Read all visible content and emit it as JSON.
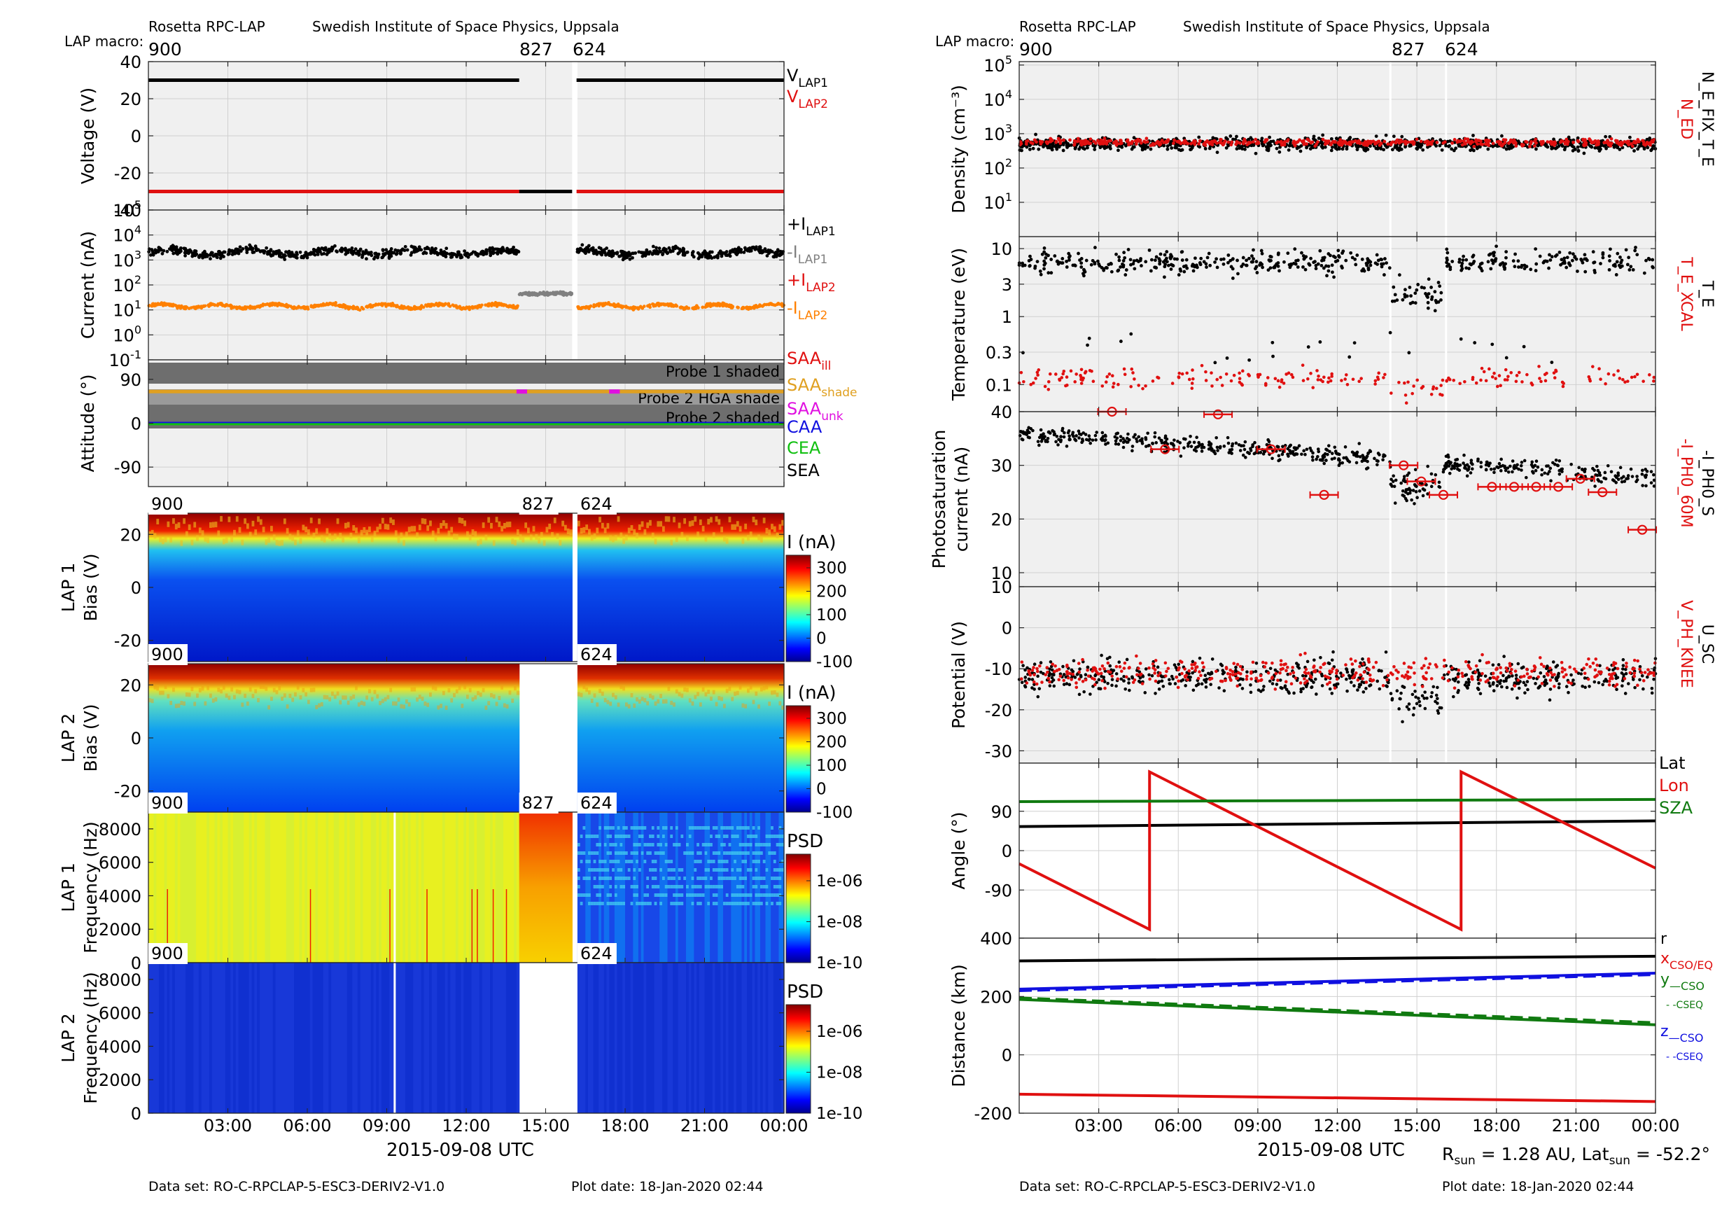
{
  "header": {
    "mission": "Rosetta RPC-LAP",
    "institute": "Swedish Institute of Space Physics, Uppsala",
    "macro_label": "LAP macro:",
    "macros": [
      "900",
      "827",
      "624"
    ]
  },
  "footer": {
    "dataset": "Data set: RO-C-RPCLAP-5-ESC3-DERIV2-V1.0",
    "plot_date": "Plot date: 18-Jan-2020 02:44",
    "xlabel": "2015-09-08 UTC",
    "rsun": "R",
    "rsun_sub": "sun",
    "rsun_val": " = 1.28 AU, Lat",
    "lat_sub": "sun",
    "lat_val": " = -52.2°"
  },
  "time_ticks": [
    "03:00",
    "06:00",
    "09:00",
    "12:00",
    "15:00",
    "18:00",
    "21:00",
    "00:00"
  ],
  "colors": {
    "panel_bg": "#f0f0f0",
    "black": "#000000",
    "red": "#e01010",
    "orange": "#ff8000",
    "grey": "#808080",
    "green": "#10c010",
    "dark_green": "#107a10",
    "blue": "#1010e0",
    "magenta": "#e010e0",
    "saa_shade": "#e0a020",
    "shade_dark": "#6e6e6e"
  },
  "chart_data": [
    {
      "type": "line",
      "name": "voltage",
      "ylabel": "Voltage (V)",
      "ylim": [
        -40,
        40
      ],
      "yticks": [
        "40",
        "20",
        "0",
        "-20",
        "-40"
      ],
      "series": [
        {
          "name": "V_LAP1",
          "segments": [
            {
              "x": [
                "00:00",
                "14:00"
              ],
              "y": 30
            },
            {
              "x": [
                "16:10",
                "24:00"
              ],
              "y": 30
            }
          ]
        },
        {
          "name": "V_LAP2",
          "segments": [
            {
              "x": [
                "00:00",
                "14:00"
              ],
              "y": -30
            },
            {
              "x": [
                "16:10",
                "24:00"
              ],
              "y": -30
            }
          ]
        },
        {
          "name": "macro 827",
          "segments": [
            {
              "x": [
                "14:00",
                "16:00"
              ],
              "y": -30
            }
          ]
        }
      ],
      "legend": [
        {
          "main": "V",
          "sub": "LAP1",
          "color": "black"
        },
        {
          "main": "V",
          "sub": "LAP2",
          "color": "red"
        }
      ]
    },
    {
      "type": "scatter",
      "name": "current",
      "ylabel": "Current (nA)",
      "yscale": "log",
      "ylim": [
        0.1,
        100000
      ],
      "yticks": [
        "10⁻¹",
        "10⁰",
        "10¹",
        "10²",
        "10³",
        "10⁴",
        "10⁵"
      ],
      "series": [
        {
          "name": "+I_LAP1",
          "typical": 2000
        },
        {
          "name": "-I_LAP1",
          "typical": 50
        },
        {
          "name": "-I_LAP2",
          "typical": 15
        }
      ],
      "legend": [
        {
          "main": "+I",
          "sub": "LAP1",
          "color": "black"
        },
        {
          "main": "-I",
          "sub": "LAP1",
          "color": "grey"
        },
        {
          "main": "+I",
          "sub": "LAP2",
          "color": "red"
        },
        {
          "main": "-I",
          "sub": "LAP2",
          "color": "orange"
        }
      ]
    },
    {
      "type": "line",
      "name": "attitude",
      "ylabel": "Attitude (°)",
      "ylim": [
        -130,
        130
      ],
      "yticks": [
        "90",
        "0",
        "-90"
      ],
      "bands": [
        "Probe 1 shaded",
        "Probe 2 HGA shade",
        "Probe 2 shaded"
      ],
      "series": [
        {
          "name": "SAA_shade",
          "y": 65
        },
        {
          "name": "CAA",
          "y": 0
        },
        {
          "name": "CEA",
          "y": -2
        }
      ],
      "legend": [
        {
          "main": "SAA",
          "sub": "ill",
          "color": "red"
        },
        {
          "main": "SAA",
          "sub": "shade",
          "color": "saa_shade"
        },
        {
          "main": "SAA",
          "sub": "unk",
          "color": "magenta"
        },
        {
          "main": "CAA",
          "sub": "",
          "color": "blue"
        },
        {
          "main": "CEA",
          "sub": "",
          "color": "green"
        },
        {
          "main": "SEA",
          "sub": "",
          "color": "black"
        }
      ]
    },
    {
      "type": "heatmap",
      "name": "lap1_bias",
      "ylabel": "LAP 1",
      "ylabel2": "Bias (V)",
      "yticks": [
        "20",
        "0",
        "-20"
      ],
      "colorbar_label": "I (nA)",
      "colorbar_ticks": [
        "300",
        "200",
        "100",
        "0",
        "-100"
      ]
    },
    {
      "type": "heatmap",
      "name": "lap2_bias",
      "ylabel": "LAP 2",
      "ylabel2": "Bias (V)",
      "yticks": [
        "20",
        "0",
        "-20"
      ],
      "colorbar_label": "I (nA)",
      "colorbar_ticks": [
        "300",
        "200",
        "100",
        "0",
        "-100"
      ]
    },
    {
      "type": "heatmap",
      "name": "lap1_psd",
      "ylabel": "LAP 1",
      "ylabel2": "Frequency (Hz)",
      "yticks": [
        "8000",
        "6000",
        "4000",
        "2000",
        "0"
      ],
      "colorbar_label": "PSD",
      "colorbar_ticks": [
        "1e-06",
        "1e-08",
        "1e-10"
      ]
    },
    {
      "type": "heatmap",
      "name": "lap2_psd",
      "ylabel": "LAP 2",
      "ylabel2": "Frequency (Hz)",
      "yticks": [
        "8000",
        "6000",
        "4000",
        "2000",
        "0"
      ],
      "colorbar_label": "PSD",
      "colorbar_ticks": [
        "1e-06",
        "1e-08",
        "1e-10"
      ]
    },
    {
      "type": "scatter",
      "name": "density",
      "ylabel": "Density (cm⁻³)",
      "yscale": "log",
      "ylim": [
        1,
        100000
      ],
      "yticks": [
        "10⁵",
        "10⁴",
        "10³",
        "10²",
        "10¹"
      ],
      "series": [
        {
          "name": "N_ED",
          "typical": 600
        },
        {
          "name": "N_E_FIX_T_E",
          "typical": 500
        }
      ],
      "legend": [
        {
          "main": "N_ED",
          "color": "red"
        },
        {
          "main": "N_E_FIX_T_E",
          "color": "black"
        }
      ]
    },
    {
      "type": "scatter",
      "name": "temperature",
      "ylabel": "Temperature (eV)",
      "yscale": "log",
      "ylim": [
        0.04,
        15
      ],
      "yticks": [
        "10",
        "3",
        "1",
        "0.3",
        "0.1"
      ],
      "series": [
        {
          "name": "T_E_XCAL",
          "typical": 0.12
        },
        {
          "name": "T_E",
          "typical": 7
        }
      ],
      "legend": [
        {
          "main": "T_E_XCAL",
          "color": "red"
        },
        {
          "main": "T_E",
          "color": "black"
        }
      ]
    },
    {
      "type": "scatter",
      "name": "photosaturation",
      "ylabel": "Photosaturation",
      "ylabel2": "current (nA)",
      "ylim": [
        10,
        40
      ],
      "yticks": [
        "40",
        "30",
        "20",
        "10"
      ],
      "series": [
        {
          "name": "-I_PH0_60M",
          "x": [
            "03:30",
            "05:30",
            "07:30",
            "09:30",
            "11:30",
            "14:30",
            "15:10",
            "16:00",
            "17:50",
            "18:40",
            "19:30",
            "20:20",
            "21:10",
            "22:00",
            "23:30"
          ],
          "y": [
            40,
            33,
            39.5,
            33,
            24.5,
            30,
            27,
            24.5,
            26,
            26,
            26,
            26,
            27.5,
            25,
            18
          ]
        },
        {
          "name": "-I_PH0_S",
          "typical": 33
        }
      ],
      "legend": [
        {
          "main": "-I_PH0_60M",
          "color": "red"
        },
        {
          "main": "-I_PH0_S",
          "color": "black"
        }
      ]
    },
    {
      "type": "scatter",
      "name": "potential",
      "ylabel": "Potential (V)",
      "ylim": [
        -33,
        10
      ],
      "yticks": [
        "10",
        "0",
        "-10",
        "-20",
        "-30"
      ],
      "series": [
        {
          "name": "V_PH_KNEE",
          "typical": -12
        },
        {
          "name": "U_SC",
          "typical": -14
        }
      ],
      "legend": [
        {
          "main": "V_PH_KNEE",
          "color": "red"
        },
        {
          "main": "U_SC",
          "color": "black"
        }
      ]
    },
    {
      "type": "line",
      "name": "angle",
      "ylabel": "Angle (°)",
      "ylim": [
        -200,
        200
      ],
      "yticks": [
        "90",
        "0",
        "-90"
      ],
      "series": [
        {
          "name": "Lat",
          "x": [
            "00:00",
            "24:00"
          ],
          "y": [
            55,
            68
          ]
        },
        {
          "name": "Lon",
          "x": [
            "00:00",
            "04:55",
            "04:55",
            "16:40",
            "16:40",
            "24:00"
          ],
          "y": [
            -30,
            -180,
            180,
            -180,
            180,
            -40
          ]
        },
        {
          "name": "SZA",
          "x": [
            "00:00",
            "24:00"
          ],
          "y": [
            112,
            117
          ]
        }
      ],
      "legend": [
        {
          "main": "Lat",
          "color": "black"
        },
        {
          "main": "Lon",
          "color": "red"
        },
        {
          "main": "SZA",
          "color": "dark_green"
        }
      ]
    },
    {
      "type": "line",
      "name": "distance",
      "ylabel": "Distance (km)",
      "ylim": [
        -200,
        400
      ],
      "yticks": [
        "400",
        "200",
        "0",
        "-200"
      ],
      "series": [
        {
          "name": "r",
          "x": [
            "00:00",
            "24:00"
          ],
          "y": [
            322,
            338
          ]
        },
        {
          "name": "x_CSO/EQ",
          "x": [
            "00:00",
            "24:00"
          ],
          "y": [
            -135,
            -160
          ]
        },
        {
          "name": "y_CSO",
          "x": [
            "00:00",
            "24:00"
          ],
          "y": [
            190,
            103
          ]
        },
        {
          "name": "y_CSEQ",
          "x": [
            "00:00",
            "24:00"
          ],
          "y": [
            195,
            110
          ]
        },
        {
          "name": "z_CSO",
          "x": [
            "00:00",
            "24:00"
          ],
          "y": [
            225,
            280
          ]
        },
        {
          "name": "z_CSEQ",
          "x": [
            "00:00",
            "24:00"
          ],
          "y": [
            220,
            275
          ]
        }
      ],
      "legend": [
        {
          "main": "r",
          "sub": "",
          "color": "black"
        },
        {
          "main": "x",
          "sub": "CSO/EQ",
          "color": "red"
        },
        {
          "main": "y",
          "sub": "—CSO",
          "color": "dark_green"
        },
        {
          "main": "",
          "sub": "- -CSEQ",
          "color": "dark_green"
        },
        {
          "main": "z",
          "sub": "—CSO",
          "color": "blue"
        },
        {
          "main": "",
          "sub": "- -CSEQ",
          "color": "blue"
        }
      ]
    }
  ]
}
